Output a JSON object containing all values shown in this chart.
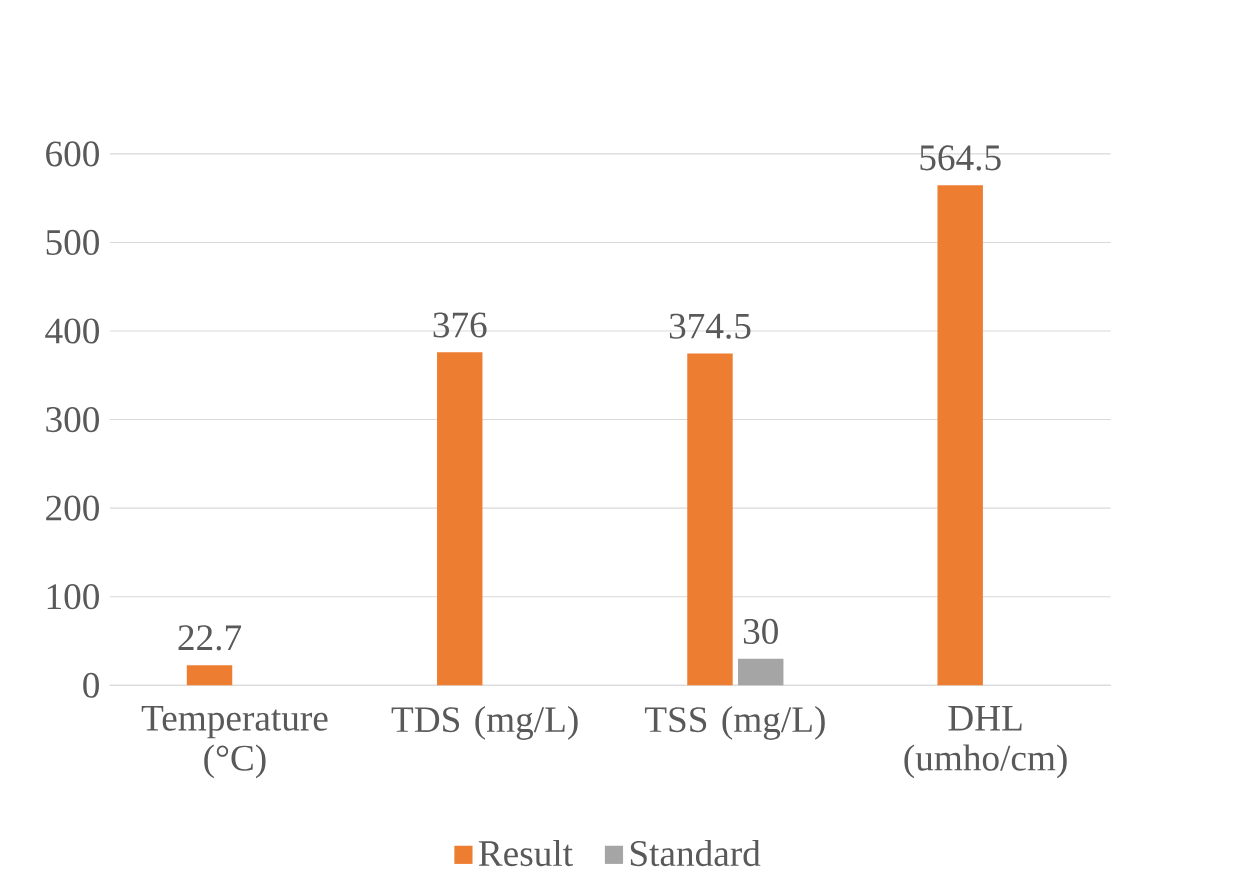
{
  "chart_data": {
    "type": "bar",
    "categories": [
      "Temperature (°C)",
      "TDS (mg/L)",
      "TSS (mg/L)",
      "DHL (umho/cm)"
    ],
    "series": [
      {
        "name": "Result",
        "color": "#ed7d31",
        "values": [
          22.7,
          376,
          374.5,
          564.5
        ]
      },
      {
        "name": "Standard",
        "color": "#a5a5a5",
        "values": [
          null,
          null,
          30,
          null
        ]
      }
    ],
    "ylim": [
      0,
      600
    ],
    "yticks": [
      0,
      100,
      200,
      300,
      400,
      500,
      600
    ],
    "grid": "y",
    "legend": "bottom",
    "data_labels": true
  }
}
